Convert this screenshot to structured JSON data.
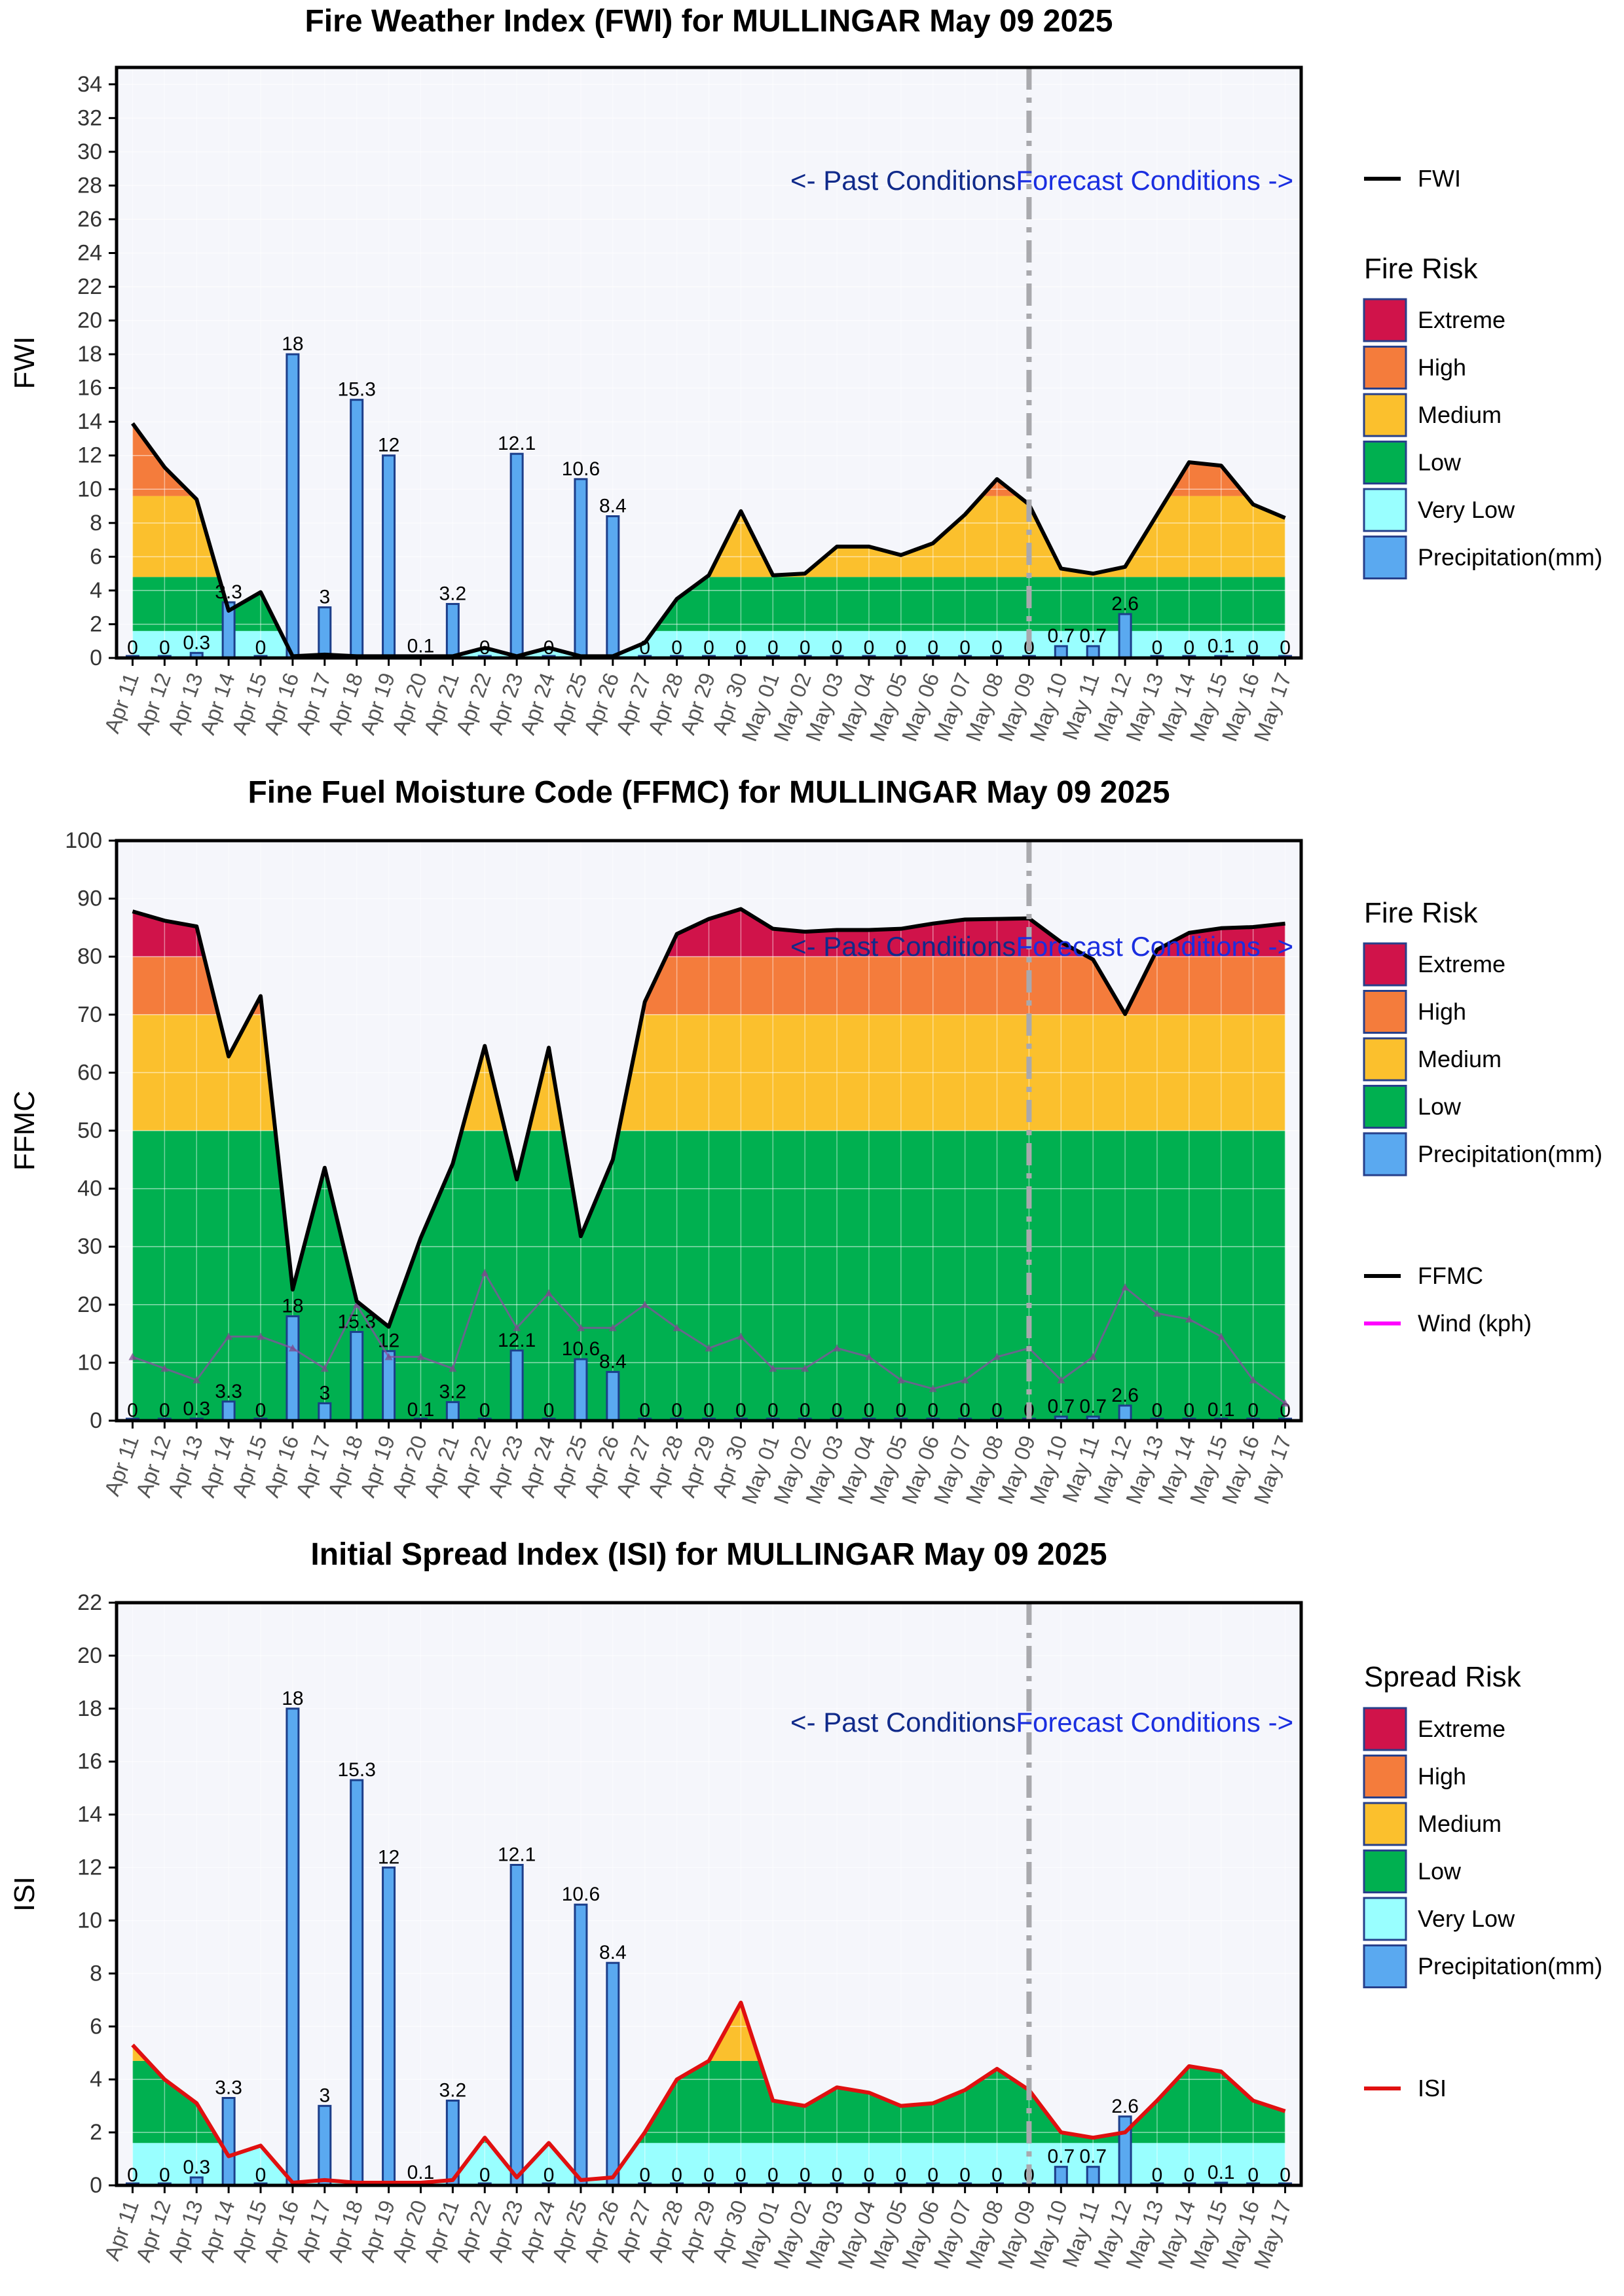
{
  "dates": [
    "Apr 11",
    "Apr 12",
    "Apr 13",
    "Apr 14",
    "Apr 15",
    "Apr 16",
    "Apr 17",
    "Apr 18",
    "Apr 19",
    "Apr 20",
    "Apr 21",
    "Apr 22",
    "Apr 23",
    "Apr 24",
    "Apr 25",
    "Apr 26",
    "Apr 27",
    "Apr 28",
    "Apr 29",
    "Apr 30",
    "May 01",
    "May 02",
    "May 03",
    "May 04",
    "May 05",
    "May 06",
    "May 07",
    "May 08",
    "May 09",
    "May 10",
    "May 11",
    "May 12",
    "May 13",
    "May 14",
    "May 15",
    "May 16",
    "May 17"
  ],
  "precipitation": [
    0,
    0,
    0.3,
    3.3,
    0,
    18,
    3,
    15.3,
    12,
    0.1,
    3.2,
    0,
    12.1,
    0,
    10.6,
    8.4,
    0,
    0,
    0,
    0,
    0,
    0,
    0,
    0,
    0,
    0,
    0,
    0,
    0,
    0.7,
    0.7,
    2.6,
    0,
    0,
    0.1,
    0,
    0
  ],
  "past_label": "<- Past Conditions",
  "forecast_label": "Forecast Conditions ->",
  "forecast_start_date": "May 09",
  "risk_colors": {
    "Extreme": "#d0134a",
    "High": "#f47c3c",
    "Medium": "#fbc02d",
    "Low": "#00b050",
    "Very Low": "#99ffff",
    "Precipitation(mm)": "#5aa9f0"
  },
  "chart_data": [
    {
      "type": "area",
      "title": "Fire Weather Index (FWI) for MULLINGAR May 09 2025",
      "ylabel": "FWI",
      "ylim": [
        0,
        35
      ],
      "yticks": [
        0,
        2,
        4,
        6,
        8,
        10,
        12,
        14,
        16,
        18,
        20,
        22,
        24,
        26,
        28,
        30,
        32,
        34
      ],
      "legend_title": "Fire Risk",
      "legend_items": [
        "Extreme",
        "High",
        "Medium",
        "Low",
        "Very Low",
        "Precipitation(mm)"
      ],
      "bands": [
        {
          "name": "Very Low",
          "from": 0,
          "to": 1.6
        },
        {
          "name": "Low",
          "from": 1.6,
          "to": 4.8
        },
        {
          "name": "Medium",
          "from": 4.8,
          "to": 9.6
        },
        {
          "name": "High",
          "from": 9.6,
          "to": 14.4
        },
        {
          "name": "Extreme",
          "from": 14.4,
          "to": 35
        }
      ],
      "series": [
        {
          "name": "FWI",
          "color": "#000000",
          "values": [
            13.9,
            11.3,
            9.4,
            2.8,
            3.9,
            0.1,
            0.2,
            0.1,
            0.1,
            0.1,
            0.1,
            0.6,
            0.1,
            0.6,
            0.1,
            0.1,
            0.9,
            3.5,
            4.9,
            8.7,
            4.9,
            5.0,
            6.6,
            6.6,
            6.1,
            6.8,
            8.5,
            10.6,
            9.1,
            5.3,
            5.0,
            5.4,
            8.5,
            11.6,
            11.4,
            9.1,
            8.3
          ]
        }
      ]
    },
    {
      "type": "area",
      "title": "Fine Fuel Moisture Code (FFMC) for MULLINGAR May 09 2025",
      "ylabel": "FFMC",
      "ylim": [
        0,
        100
      ],
      "yticks": [
        0,
        10,
        20,
        30,
        40,
        50,
        60,
        70,
        80,
        90,
        100
      ],
      "legend_title": "Fire Risk",
      "legend_items": [
        "Extreme",
        "High",
        "Medium",
        "Low",
        "Precipitation(mm)"
      ],
      "bands": [
        {
          "name": "Low",
          "from": 0,
          "to": 50
        },
        {
          "name": "Medium",
          "from": 50,
          "to": 70
        },
        {
          "name": "High",
          "from": 70,
          "to": 80
        },
        {
          "name": "Extreme",
          "from": 80,
          "to": 100
        }
      ],
      "series": [
        {
          "name": "FFMC",
          "color": "#000000",
          "values": [
            87.8,
            86.2,
            85.2,
            62.8,
            73.2,
            22.6,
            43.6,
            20.6,
            16.2,
            31.5,
            44.3,
            64.6,
            41.6,
            64.3,
            31.8,
            45.0,
            72.2,
            83.9,
            86.5,
            88.2,
            84.8,
            84.3,
            84.6,
            84.6,
            84.8,
            85.7,
            86.4,
            86.5,
            86.6,
            82.5,
            79.5,
            70.1,
            81.2,
            84.1,
            84.9,
            85.1,
            85.7
          ]
        },
        {
          "name": "Wind (kph)",
          "color": "#ff00ff",
          "marker": true,
          "values": [
            11,
            9,
            7,
            14.5,
            14.5,
            12.5,
            9,
            20,
            11,
            11,
            9,
            25.5,
            16,
            22,
            16,
            16,
            20,
            16,
            12.5,
            14.5,
            9,
            9,
            12.5,
            11,
            7,
            5.5,
            7,
            11,
            12.5,
            7,
            11,
            23,
            18.5,
            17.5,
            14.5,
            7,
            3
          ]
        }
      ]
    },
    {
      "type": "area",
      "title": "Initial Spread Index (ISI) for MULLINGAR May 09 2025",
      "ylabel": "ISI",
      "ylim": [
        0,
        22
      ],
      "yticks": [
        0,
        2,
        4,
        6,
        8,
        10,
        12,
        14,
        16,
        18,
        20,
        22
      ],
      "legend_title": "Spread Risk",
      "legend_items": [
        "Extreme",
        "High",
        "Medium",
        "Low",
        "Very Low",
        "Precipitation(mm)"
      ],
      "bands": [
        {
          "name": "Very Low",
          "from": 0,
          "to": 1.6
        },
        {
          "name": "Low",
          "from": 1.6,
          "to": 4.7
        },
        {
          "name": "Medium",
          "from": 4.7,
          "to": 9.5
        },
        {
          "name": "High",
          "from": 9.5,
          "to": 14.3
        },
        {
          "name": "Extreme",
          "from": 14.3,
          "to": 22
        }
      ],
      "series": [
        {
          "name": "ISI",
          "color": "#e01010",
          "values": [
            5.3,
            4.0,
            3.1,
            1.1,
            1.5,
            0.1,
            0.2,
            0.1,
            0.1,
            0.1,
            0.2,
            1.8,
            0.3,
            1.6,
            0.2,
            0.3,
            2.0,
            4.0,
            4.7,
            6.9,
            3.2,
            3.0,
            3.7,
            3.5,
            3.0,
            3.1,
            3.6,
            4.4,
            3.6,
            2.0,
            1.8,
            2.0,
            3.2,
            4.5,
            4.3,
            3.2,
            2.8
          ]
        }
      ]
    }
  ]
}
